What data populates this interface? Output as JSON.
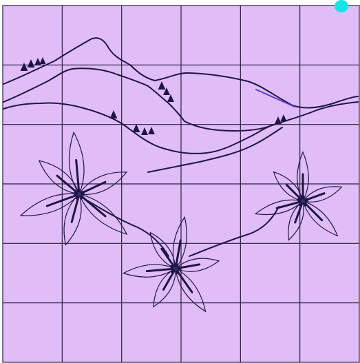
{
  "colors": {
    "paper": "#e0bdf7",
    "paper_edge": "#d4aef0",
    "grid_line": "#2a1f3d",
    "ink": "#1f1446",
    "ink_light": "#3a2c6c",
    "highlight": "#5a3cd0",
    "indicator_dot": "#14e6e6",
    "background": "#ffffff"
  },
  "icons": {
    "indicator": "cyan-dot-icon"
  },
  "grid": {
    "columns": 6,
    "rows": 6
  }
}
